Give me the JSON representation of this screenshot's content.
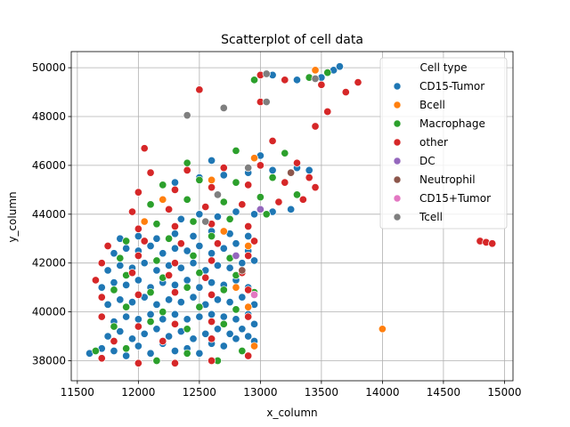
{
  "chart_data": {
    "type": "scatter",
    "title": "Scatterplot of cell data",
    "xlabel": "x_column",
    "ylabel": "y_column",
    "xlim": [
      11450,
      15070
    ],
    "ylim": [
      37180,
      50660
    ],
    "x_ticks": [
      11500,
      12000,
      12500,
      13000,
      13500,
      14000,
      14500,
      15000
    ],
    "y_ticks": [
      38000,
      40000,
      42000,
      44000,
      46000,
      48000,
      50000
    ],
    "grid": true,
    "legend": {
      "title": "Cell type",
      "placement": "top-right",
      "entries": [
        {
          "name": "CD15-Tumor",
          "color": "#1f77b4"
        },
        {
          "name": "Bcell",
          "color": "#ff7f0e"
        },
        {
          "name": "Macrophage",
          "color": "#2ca02c"
        },
        {
          "name": "other",
          "color": "#d62728"
        },
        {
          "name": "DC",
          "color": "#9467bd"
        },
        {
          "name": "Neutrophil",
          "color": "#8c564b"
        },
        {
          "name": "CD15+Tumor",
          "color": "#e377c2"
        },
        {
          "name": "Tcell",
          "color": "#7f7f7f"
        }
      ]
    },
    "series": [
      {
        "name": "CD15-Tumor",
        "points": [
          [
            11600,
            38300
          ],
          [
            11700,
            38500
          ],
          [
            11800,
            38400
          ],
          [
            11900,
            38200
          ],
          [
            12000,
            38600
          ],
          [
            12100,
            38300
          ],
          [
            12200,
            38700
          ],
          [
            12300,
            38400
          ],
          [
            12400,
            38500
          ],
          [
            12500,
            38300
          ],
          [
            12600,
            38700
          ],
          [
            12700,
            38600
          ],
          [
            12800,
            38900
          ],
          [
            12900,
            39000
          ],
          [
            12950,
            38800
          ],
          [
            11750,
            39000
          ],
          [
            11850,
            39200
          ],
          [
            11950,
            38900
          ],
          [
            12050,
            39100
          ],
          [
            12150,
            39300
          ],
          [
            12250,
            39000
          ],
          [
            12350,
            39200
          ],
          [
            12450,
            38900
          ],
          [
            12550,
            39100
          ],
          [
            12650,
            39300
          ],
          [
            12750,
            39100
          ],
          [
            12850,
            39300
          ],
          [
            12950,
            39500
          ],
          [
            11800,
            39600
          ],
          [
            11900,
            39800
          ],
          [
            12000,
            39700
          ],
          [
            12100,
            39900
          ],
          [
            12200,
            39700
          ],
          [
            12300,
            39900
          ],
          [
            12400,
            39700
          ],
          [
            12500,
            39800
          ],
          [
            12600,
            39900
          ],
          [
            12700,
            39800
          ],
          [
            12800,
            39700
          ],
          [
            12900,
            39900
          ],
          [
            11750,
            40300
          ],
          [
            11850,
            40500
          ],
          [
            11950,
            40400
          ],
          [
            12050,
            40600
          ],
          [
            12150,
            40300
          ],
          [
            12250,
            40500
          ],
          [
            12350,
            40400
          ],
          [
            12450,
            40600
          ],
          [
            12550,
            40300
          ],
          [
            12650,
            40500
          ],
          [
            12750,
            40400
          ],
          [
            12850,
            40600
          ],
          [
            12950,
            40300
          ],
          [
            11700,
            41000
          ],
          [
            11800,
            41200
          ],
          [
            11900,
            41100
          ],
          [
            12000,
            41300
          ],
          [
            12100,
            41000
          ],
          [
            12200,
            41200
          ],
          [
            12300,
            41100
          ],
          [
            12400,
            41300
          ],
          [
            12500,
            41000
          ],
          [
            12600,
            41200
          ],
          [
            12700,
            41100
          ],
          [
            12800,
            41300
          ],
          [
            12900,
            41000
          ],
          [
            11750,
            41700
          ],
          [
            11850,
            41900
          ],
          [
            11950,
            41800
          ],
          [
            12050,
            42000
          ],
          [
            12150,
            41700
          ],
          [
            12250,
            41900
          ],
          [
            12350,
            41800
          ],
          [
            12450,
            42000
          ],
          [
            12550,
            41700
          ],
          [
            12650,
            41900
          ],
          [
            12750,
            41800
          ],
          [
            12850,
            42000
          ],
          [
            12950,
            42100
          ],
          [
            11800,
            42400
          ],
          [
            11900,
            42600
          ],
          [
            12000,
            42500
          ],
          [
            12100,
            42700
          ],
          [
            12200,
            42400
          ],
          [
            12300,
            42600
          ],
          [
            12400,
            42500
          ],
          [
            12500,
            42700
          ],
          [
            12600,
            42400
          ],
          [
            12700,
            42600
          ],
          [
            12800,
            42800
          ],
          [
            12900,
            42500
          ],
          [
            11850,
            43000
          ],
          [
            12000,
            43100
          ],
          [
            12150,
            43000
          ],
          [
            12300,
            43200
          ],
          [
            12450,
            43100
          ],
          [
            12600,
            43300
          ],
          [
            12750,
            43200
          ],
          [
            12900,
            43100
          ],
          [
            12350,
            43800
          ],
          [
            12500,
            44000
          ],
          [
            12650,
            43900
          ],
          [
            12800,
            44100
          ],
          [
            12950,
            44000
          ],
          [
            13100,
            44100
          ],
          [
            13250,
            44200
          ],
          [
            12300,
            45300
          ],
          [
            12500,
            45500
          ],
          [
            12700,
            45600
          ],
          [
            12900,
            45700
          ],
          [
            13100,
            45800
          ],
          [
            13300,
            45900
          ],
          [
            13400,
            45800
          ],
          [
            12600,
            46200
          ],
          [
            13000,
            46400
          ],
          [
            13500,
            49600
          ],
          [
            13600,
            49900
          ],
          [
            13650,
            50050
          ],
          [
            13300,
            49500
          ],
          [
            13100,
            49700
          ]
        ]
      },
      {
        "name": "Bcell",
        "points": [
          [
            12950,
            38600
          ],
          [
            12900,
            40200
          ],
          [
            12800,
            41000
          ],
          [
            12900,
            42700
          ],
          [
            12700,
            43300
          ],
          [
            12050,
            43700
          ],
          [
            12200,
            44600
          ],
          [
            12600,
            45400
          ],
          [
            12950,
            46300
          ],
          [
            13450,
            49900
          ],
          [
            14000,
            39300
          ]
        ]
      },
      {
        "name": "Macrophage",
        "points": [
          [
            11650,
            38400
          ],
          [
            11900,
            38500
          ],
          [
            12150,
            38000
          ],
          [
            12400,
            38300
          ],
          [
            12650,
            38000
          ],
          [
            12850,
            38400
          ],
          [
            11800,
            39400
          ],
          [
            12100,
            39600
          ],
          [
            12400,
            39300
          ],
          [
            12700,
            39500
          ],
          [
            11900,
            40200
          ],
          [
            12200,
            40000
          ],
          [
            12500,
            40200
          ],
          [
            12800,
            40100
          ],
          [
            11800,
            40900
          ],
          [
            12100,
            40800
          ],
          [
            12400,
            41000
          ],
          [
            12700,
            40900
          ],
          [
            12950,
            40800
          ],
          [
            11900,
            41500
          ],
          [
            12200,
            41400
          ],
          [
            12500,
            41600
          ],
          [
            12800,
            41500
          ],
          [
            11850,
            42200
          ],
          [
            12150,
            42100
          ],
          [
            12450,
            42300
          ],
          [
            12750,
            42200
          ],
          [
            11900,
            42900
          ],
          [
            12250,
            43000
          ],
          [
            12600,
            43100
          ],
          [
            12150,
            43600
          ],
          [
            12450,
            43700
          ],
          [
            12750,
            43800
          ],
          [
            13050,
            44000
          ],
          [
            12100,
            44400
          ],
          [
            12400,
            44600
          ],
          [
            12700,
            44500
          ],
          [
            13000,
            44700
          ],
          [
            13300,
            44800
          ],
          [
            12200,
            45200
          ],
          [
            12500,
            45400
          ],
          [
            12800,
            45300
          ],
          [
            13100,
            45500
          ],
          [
            12400,
            46100
          ],
          [
            12800,
            46600
          ],
          [
            13200,
            46500
          ],
          [
            12950,
            49500
          ],
          [
            13400,
            49600
          ],
          [
            13550,
            49800
          ]
        ]
      },
      {
        "name": "other",
        "points": [
          [
            11700,
            38100
          ],
          [
            12000,
            37900
          ],
          [
            12300,
            37900
          ],
          [
            12600,
            38000
          ],
          [
            12900,
            38200
          ],
          [
            11800,
            38800
          ],
          [
            12200,
            38800
          ],
          [
            12600,
            38900
          ],
          [
            11700,
            39800
          ],
          [
            12000,
            39400
          ],
          [
            12300,
            39500
          ],
          [
            12600,
            39600
          ],
          [
            12900,
            39800
          ],
          [
            11700,
            40600
          ],
          [
            12000,
            40700
          ],
          [
            12300,
            40800
          ],
          [
            12600,
            40700
          ],
          [
            12900,
            40900
          ],
          [
            11650,
            41300
          ],
          [
            11950,
            41600
          ],
          [
            12250,
            41500
          ],
          [
            12550,
            41400
          ],
          [
            12850,
            41600
          ],
          [
            11700,
            42000
          ],
          [
            12000,
            42300
          ],
          [
            12300,
            42000
          ],
          [
            12600,
            42100
          ],
          [
            12900,
            42300
          ],
          [
            11750,
            42700
          ],
          [
            12050,
            42900
          ],
          [
            12350,
            42800
          ],
          [
            12650,
            42800
          ],
          [
            12950,
            42900
          ],
          [
            12000,
            43400
          ],
          [
            12300,
            43500
          ],
          [
            12600,
            43600
          ],
          [
            12900,
            43500
          ],
          [
            11950,
            44100
          ],
          [
            12250,
            44200
          ],
          [
            12550,
            44300
          ],
          [
            12850,
            44400
          ],
          [
            13150,
            44500
          ],
          [
            13350,
            44600
          ],
          [
            12000,
            44900
          ],
          [
            12300,
            45000
          ],
          [
            12600,
            45100
          ],
          [
            12900,
            45200
          ],
          [
            13200,
            45300
          ],
          [
            13450,
            45100
          ],
          [
            12100,
            45700
          ],
          [
            12400,
            45800
          ],
          [
            12700,
            45900
          ],
          [
            13000,
            46000
          ],
          [
            13300,
            46100
          ],
          [
            13400,
            45500
          ],
          [
            13100,
            47000
          ],
          [
            13450,
            47600
          ],
          [
            13550,
            48200
          ],
          [
            12500,
            49100
          ],
          [
            13000,
            49700
          ],
          [
            13200,
            49500
          ],
          [
            13500,
            49300
          ],
          [
            13700,
            49000
          ],
          [
            13800,
            49400
          ],
          [
            14800,
            42900
          ],
          [
            14850,
            42850
          ],
          [
            14900,
            42800
          ],
          [
            12050,
            46700
          ],
          [
            13000,
            48600
          ]
        ]
      },
      {
        "name": "DC",
        "points": [
          [
            12800,
            42300
          ],
          [
            13000,
            44200
          ]
        ]
      },
      {
        "name": "Neutrophil",
        "points": [
          [
            12850,
            41700
          ],
          [
            13250,
            45700
          ]
        ]
      },
      {
        "name": "CD15+Tumor",
        "points": [
          [
            12950,
            40700
          ]
        ]
      },
      {
        "name": "Tcell",
        "points": [
          [
            12550,
            43700
          ],
          [
            12650,
            44800
          ],
          [
            12900,
            45900
          ],
          [
            12400,
            48050
          ],
          [
            12700,
            48350
          ],
          [
            13050,
            48600
          ],
          [
            13050,
            49750
          ],
          [
            13450,
            49550
          ]
        ]
      }
    ]
  }
}
